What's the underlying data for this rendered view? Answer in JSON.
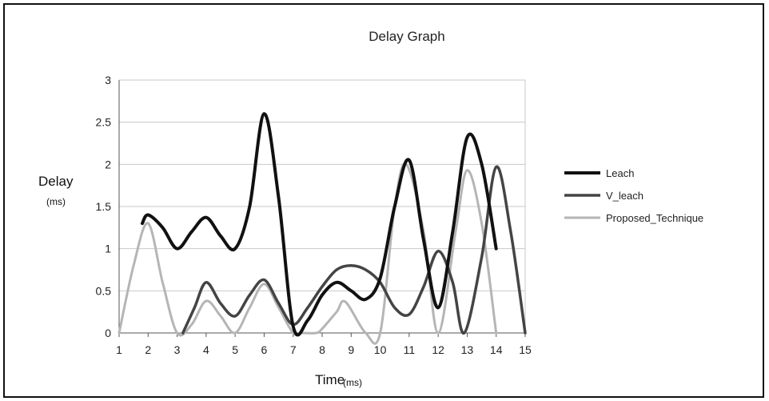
{
  "chart_data": {
    "type": "line",
    "title": "Delay Graph",
    "xlabel": "Time",
    "xlabel_unit": "(ms)",
    "ylabel": "Delay",
    "ylabel_unit": "(ms)",
    "x_ticks": [
      "1",
      "2",
      "3",
      "4",
      "5",
      "6",
      "7",
      "8",
      "9",
      "10",
      "11",
      "12",
      "13",
      "14",
      "15"
    ],
    "y_ticks": [
      "0",
      "0.5",
      "1",
      "1.5",
      "2",
      "2.5",
      "3"
    ],
    "xlim": [
      1,
      15
    ],
    "ylim": [
      0,
      3
    ],
    "grid": true,
    "legend_position": "right",
    "series": [
      {
        "name": "Leach",
        "color": "#111111",
        "points": [
          [
            1.8,
            1.3
          ],
          [
            2,
            1.4
          ],
          [
            2.5,
            1.25
          ],
          [
            3,
            1.0
          ],
          [
            3.5,
            1.2
          ],
          [
            4,
            1.37
          ],
          [
            4.5,
            1.15
          ],
          [
            5,
            1.0
          ],
          [
            5.5,
            1.5
          ],
          [
            6,
            2.6
          ],
          [
            6.5,
            1.6
          ],
          [
            7,
            0.08
          ],
          [
            7.5,
            0.15
          ],
          [
            8,
            0.45
          ],
          [
            8.5,
            0.6
          ],
          [
            9,
            0.5
          ],
          [
            9.5,
            0.4
          ],
          [
            10,
            0.65
          ],
          [
            10.5,
            1.5
          ],
          [
            11,
            2.05
          ],
          [
            11.5,
            1.1
          ],
          [
            12,
            0.3
          ],
          [
            12.5,
            1.2
          ],
          [
            13,
            2.32
          ],
          [
            13.5,
            2.0
          ],
          [
            14,
            1.0
          ]
        ]
      },
      {
        "name": "V_leach",
        "color": "#444444",
        "points": [
          [
            3.2,
            0
          ],
          [
            3.6,
            0.3
          ],
          [
            4,
            0.6
          ],
          [
            4.5,
            0.35
          ],
          [
            5,
            0.2
          ],
          [
            5.5,
            0.45
          ],
          [
            6,
            0.63
          ],
          [
            6.5,
            0.35
          ],
          [
            7,
            0.1
          ],
          [
            7.5,
            0.3
          ],
          [
            8,
            0.55
          ],
          [
            8.5,
            0.75
          ],
          [
            9,
            0.8
          ],
          [
            9.5,
            0.75
          ],
          [
            10,
            0.6
          ],
          [
            10.5,
            0.3
          ],
          [
            11,
            0.22
          ],
          [
            11.5,
            0.55
          ],
          [
            12,
            0.97
          ],
          [
            12.5,
            0.6
          ],
          [
            12.9,
            0
          ],
          [
            13.5,
            0.9
          ],
          [
            14,
            1.97
          ],
          [
            14.5,
            1.2
          ],
          [
            15,
            0
          ]
        ]
      },
      {
        "name": "Proposed_Technique",
        "color": "#b5b5b5",
        "points": [
          [
            1,
            0
          ],
          [
            1.5,
            0.8
          ],
          [
            2,
            1.3
          ],
          [
            2.5,
            0.6
          ],
          [
            3,
            0
          ],
          [
            3.5,
            0.1
          ],
          [
            4,
            0.38
          ],
          [
            4.5,
            0.2
          ],
          [
            5,
            0
          ],
          [
            5.5,
            0.3
          ],
          [
            6,
            0.58
          ],
          [
            6.5,
            0.3
          ],
          [
            7,
            0
          ],
          [
            7.3,
            0
          ],
          [
            7.8,
            0
          ],
          [
            8,
            0.05
          ],
          [
            8.5,
            0.25
          ],
          [
            8.8,
            0.37
          ],
          [
            9.5,
            0
          ],
          [
            10,
            0
          ],
          [
            10.5,
            1.5
          ],
          [
            10.9,
            2.0
          ],
          [
            11.5,
            1.2
          ],
          [
            12,
            0
          ],
          [
            12.6,
            1.2
          ],
          [
            13,
            1.93
          ],
          [
            13.5,
            1.3
          ],
          [
            14,
            0
          ]
        ]
      }
    ]
  }
}
